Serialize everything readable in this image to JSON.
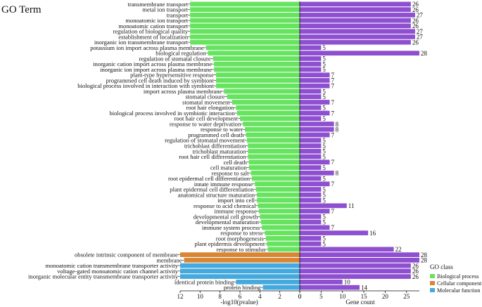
{
  "chart_data": {
    "type": "bar",
    "title": "GO Term",
    "left_xlabel": "-log10(pvalue)",
    "right_xlabel": "Gene count",
    "left_xlim": [
      12,
      0
    ],
    "right_xlim": [
      0,
      28
    ],
    "left_ticks": [
      "12",
      "10",
      "8",
      "6",
      "4",
      "2",
      "0"
    ],
    "right_ticks": [
      "0",
      "5",
      "10",
      "15",
      "20",
      "25"
    ],
    "legend": {
      "title": "GO class",
      "placement": "right",
      "items": [
        {
          "label": "Biological process",
          "color": "#66e35f"
        },
        {
          "label": "Cellular component",
          "color": "#d98634"
        },
        {
          "label": "Molecular function",
          "color": "#45a9dd"
        }
      ]
    },
    "count_color": "#8e4fd0",
    "terms": [
      {
        "term": "transmembrane transport",
        "pvalue_log": 11.0,
        "count": 26,
        "class": "BP"
      },
      {
        "term": "metal ion transport",
        "pvalue_log": 11.0,
        "count": 26,
        "class": "BP"
      },
      {
        "term": "transport",
        "pvalue_log": 11.0,
        "count": 27,
        "class": "BP"
      },
      {
        "term": "monoatomic ion transport",
        "pvalue_log": 11.0,
        "count": 26,
        "class": "BP"
      },
      {
        "term": "monoatomic cation transport",
        "pvalue_log": 11.0,
        "count": 26,
        "class": "BP"
      },
      {
        "term": "regulation of biological quality",
        "pvalue_log": 11.0,
        "count": 27,
        "class": "BP"
      },
      {
        "term": "establishment of localization",
        "pvalue_log": 11.0,
        "count": 27,
        "class": "BP"
      },
      {
        "term": "inorganic ion transmembrane transport",
        "pvalue_log": 11.0,
        "count": 26,
        "class": "BP"
      },
      {
        "term": "potassium ion import across plasma membrane",
        "pvalue_log": 9.4,
        "count": 5,
        "class": "BP"
      },
      {
        "term": "biological regulation",
        "pvalue_log": 9.2,
        "count": 28,
        "class": "BP"
      },
      {
        "term": "regulation of stomatal closure",
        "pvalue_log": 8.7,
        "count": 5,
        "class": "BP"
      },
      {
        "term": "inorganic cation import across plasma membrane",
        "pvalue_log": 8.6,
        "count": 5,
        "class": "BP"
      },
      {
        "term": "inorganic ion import across plasma membrane",
        "pvalue_log": 8.6,
        "count": 5,
        "class": "BP"
      },
      {
        "term": "plant-type hypersensitive response",
        "pvalue_log": 8.4,
        "count": 7,
        "class": "BP"
      },
      {
        "term": "programmed cell death induced by symbiont",
        "pvalue_log": 8.4,
        "count": 7,
        "class": "BP"
      },
      {
        "term": "biological process involved in interaction with symbiont",
        "pvalue_log": 8.4,
        "count": 7,
        "class": "BP"
      },
      {
        "term": "import across plasma membrane",
        "pvalue_log": 7.6,
        "count": 5,
        "class": "BP"
      },
      {
        "term": "stomatal closure",
        "pvalue_log": 7.3,
        "count": 5,
        "class": "BP"
      },
      {
        "term": "stomatal movement",
        "pvalue_log": 6.8,
        "count": 7,
        "class": "BP"
      },
      {
        "term": "root hair elongation",
        "pvalue_log": 6.4,
        "count": 5,
        "class": "BP"
      },
      {
        "term": "biological process involved in symbiotic interaction",
        "pvalue_log": 6.3,
        "count": 7,
        "class": "BP"
      },
      {
        "term": "root hair cell development",
        "pvalue_log": 6.0,
        "count": 5,
        "class": "BP"
      },
      {
        "term": "response to water deprivation",
        "pvalue_log": 5.7,
        "count": 8,
        "class": "BP"
      },
      {
        "term": "response to water",
        "pvalue_log": 5.5,
        "count": 8,
        "class": "BP"
      },
      {
        "term": "programmed cell death",
        "pvalue_log": 5.4,
        "count": 7,
        "class": "BP"
      },
      {
        "term": "regulation of stomatal movement",
        "pvalue_log": 5.3,
        "count": 5,
        "class": "BP"
      },
      {
        "term": "trichoblast differentiation",
        "pvalue_log": 5.2,
        "count": 5,
        "class": "BP"
      },
      {
        "term": "trichoblast maturation",
        "pvalue_log": 5.2,
        "count": 5,
        "class": "BP"
      },
      {
        "term": "root hair cell differentiation",
        "pvalue_log": 5.2,
        "count": 5,
        "class": "BP"
      },
      {
        "term": "cell death",
        "pvalue_log": 5.1,
        "count": 7,
        "class": "BP"
      },
      {
        "term": "cell maturation",
        "pvalue_log": 5.1,
        "count": 5,
        "class": "BP"
      },
      {
        "term": "response to salt",
        "pvalue_log": 4.9,
        "count": 8,
        "class": "BP"
      },
      {
        "term": "root epidermal cell differentiation",
        "pvalue_log": 4.8,
        "count": 5,
        "class": "BP"
      },
      {
        "term": "innate immune response",
        "pvalue_log": 4.5,
        "count": 7,
        "class": "BP"
      },
      {
        "term": "plant epidermal cell differentiation",
        "pvalue_log": 4.4,
        "count": 5,
        "class": "BP"
      },
      {
        "term": "anatomical structure maturation",
        "pvalue_log": 4.3,
        "count": 5,
        "class": "BP"
      },
      {
        "term": "import into cell",
        "pvalue_log": 4.3,
        "count": 5,
        "class": "BP"
      },
      {
        "term": "response to acid chemical",
        "pvalue_log": 4.2,
        "count": 11,
        "class": "BP"
      },
      {
        "term": "immune response",
        "pvalue_log": 4.1,
        "count": 7,
        "class": "BP"
      },
      {
        "term": "developmental cell growth",
        "pvalue_log": 4.0,
        "count": 5,
        "class": "BP"
      },
      {
        "term": "developmental maturation",
        "pvalue_log": 3.9,
        "count": 5,
        "class": "BP"
      },
      {
        "term": "immune system process",
        "pvalue_log": 3.8,
        "count": 7,
        "class": "BP"
      },
      {
        "term": "response to stress",
        "pvalue_log": 3.5,
        "count": 16,
        "class": "BP"
      },
      {
        "term": "root morphogenesis",
        "pvalue_log": 3.4,
        "count": 5,
        "class": "BP"
      },
      {
        "term": "plant epidermis development",
        "pvalue_log": 3.3,
        "count": 5,
        "class": "BP"
      },
      {
        "term": "response to stimulus",
        "pvalue_log": 3.2,
        "count": 22,
        "class": "BP"
      },
      {
        "term": "obsolete intrinsic component of membrane",
        "pvalue_log": 12.0,
        "count": 28,
        "class": "CC"
      },
      {
        "term": "membrane",
        "pvalue_log": 11.6,
        "count": 28,
        "class": "CC"
      },
      {
        "term": "monoatomic cation transmembrane transporter activity",
        "pvalue_log": 12.0,
        "count": 26,
        "class": "MF"
      },
      {
        "term": "voltage-gated monoatomic cation channel activity",
        "pvalue_log": 12.0,
        "count": 26,
        "class": "MF"
      },
      {
        "term": "inorganic molecular entity transmembrane transporter activity",
        "pvalue_log": 12.0,
        "count": 26,
        "class": "MF"
      },
      {
        "term": "identical protein binding",
        "pvalue_log": 6.4,
        "count": 10,
        "class": "MF"
      },
      {
        "term": "protein binding",
        "pvalue_log": 3.7,
        "count": 14,
        "class": "MF"
      }
    ]
  }
}
